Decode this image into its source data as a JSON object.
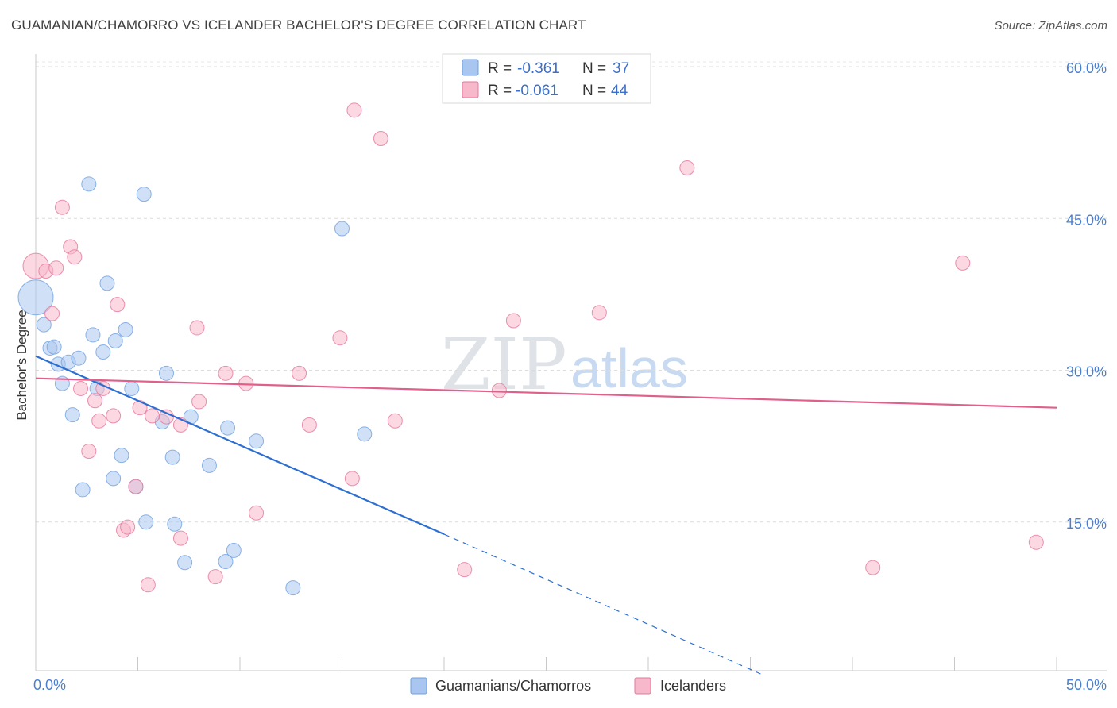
{
  "header": {
    "title": "GUAMANIAN/CHAMORRO VS ICELANDER BACHELOR'S DEGREE CORRELATION CHART",
    "source": "Source: ZipAtlas.com"
  },
  "watermark": {
    "part1": "ZIP",
    "part2": "atlas"
  },
  "legend": {
    "rows": [
      {
        "r_label": "R = ",
        "r_value": "-0.361",
        "n_label": "N = ",
        "n_value": "37",
        "color": "#a9c6f0"
      },
      {
        "r_label": "R = ",
        "r_value": "-0.061",
        "n_label": "N = ",
        "n_value": "44",
        "color": "#f7b8cb"
      }
    ]
  },
  "bottom_legend": [
    {
      "label": "Guamanians/Chamorros",
      "color": "#a9c6f0"
    },
    {
      "label": "Icelanders",
      "color": "#f7b8cb"
    }
  ],
  "chart_data": {
    "type": "scatter",
    "title": "GUAMANIAN/CHAMORRO VS ICELANDER BACHELOR'S DEGREE CORRELATION CHART",
    "xlabel": "",
    "ylabel": "Bachelor's Degree",
    "xlim": [
      0,
      50
    ],
    "ylim": [
      0,
      60
    ],
    "x_tick_labels": [
      "0.0%",
      "50.0%"
    ],
    "y_ticks": [
      15,
      30,
      45,
      60
    ],
    "y_tick_labels": [
      "15.0%",
      "30.0%",
      "45.0%",
      "60.0%"
    ],
    "grid": true,
    "series": [
      {
        "name": "Guamanians/Chamorros",
        "color": "#6fa0e0",
        "fill": "#a9c6f0",
        "trend": {
          "x0": 0,
          "y0": 31.4,
          "x1": 20,
          "y1": 13.8,
          "dash_to_x": 35.5,
          "dash_to_y": 0
        },
        "points": [
          [
            0,
            37.2,
            3
          ],
          [
            0.4,
            34.5,
            1
          ],
          [
            0.7,
            32.2,
            1
          ],
          [
            0.9,
            32.3,
            1
          ],
          [
            1.1,
            30.6,
            1
          ],
          [
            1.3,
            28.7,
            1
          ],
          [
            1.6,
            30.8,
            1
          ],
          [
            2.1,
            31.2,
            1
          ],
          [
            2.6,
            48.4,
            1
          ],
          [
            2.8,
            33.5,
            1
          ],
          [
            3.0,
            28.2,
            1
          ],
          [
            3.3,
            31.8,
            1
          ],
          [
            3.5,
            38.6,
            1
          ],
          [
            3.9,
            32.9,
            1
          ],
          [
            4.4,
            34.0,
            1
          ],
          [
            4.7,
            28.2,
            1
          ],
          [
            5.3,
            47.4,
            1
          ],
          [
            6.4,
            29.7,
            1
          ],
          [
            6.2,
            24.9,
            1
          ],
          [
            7.6,
            25.4,
            1
          ],
          [
            8.5,
            20.6,
            1
          ],
          [
            9.4,
            24.3,
            1
          ],
          [
            10.8,
            23.0,
            1
          ],
          [
            15.0,
            44.0,
            1
          ],
          [
            16.1,
            23.7,
            1
          ],
          [
            1.8,
            25.6,
            1
          ],
          [
            2.3,
            18.2,
            1
          ],
          [
            3.8,
            19.3,
            1
          ],
          [
            4.2,
            21.6,
            1
          ],
          [
            4.9,
            18.5,
            1
          ],
          [
            5.4,
            15.0,
            1
          ],
          [
            6.7,
            21.4,
            1
          ],
          [
            6.8,
            14.8,
            1
          ],
          [
            7.3,
            11.0,
            1
          ],
          [
            9.3,
            11.1,
            1
          ],
          [
            9.7,
            12.2,
            1
          ],
          [
            12.6,
            8.5,
            1
          ]
        ]
      },
      {
        "name": "Icelanders",
        "color": "#e5779b",
        "fill": "#f7b8cb",
        "trend": {
          "x0": 0,
          "y0": 29.2,
          "x1": 50,
          "y1": 26.3
        },
        "points": [
          [
            0,
            40.3,
            2
          ],
          [
            0.5,
            39.8,
            1
          ],
          [
            0.8,
            35.6,
            1
          ],
          [
            1.0,
            40.1,
            1
          ],
          [
            1.3,
            46.1,
            1
          ],
          [
            1.7,
            42.2,
            1
          ],
          [
            1.9,
            41.2,
            1
          ],
          [
            2.2,
            28.2,
            1
          ],
          [
            2.6,
            22.0,
            1
          ],
          [
            2.9,
            27.0,
            1
          ],
          [
            3.1,
            25.0,
            1
          ],
          [
            3.3,
            28.2,
            1
          ],
          [
            3.8,
            25.5,
            1
          ],
          [
            4.0,
            36.5,
            1
          ],
          [
            4.3,
            14.2,
            1
          ],
          [
            4.5,
            14.5,
            1
          ],
          [
            4.9,
            18.5,
            1
          ],
          [
            5.1,
            26.3,
            1
          ],
          [
            5.5,
            8.8,
            1
          ],
          [
            5.7,
            25.5,
            1
          ],
          [
            6.4,
            25.4,
            1
          ],
          [
            7.1,
            24.6,
            1
          ],
          [
            7.1,
            13.4,
            1
          ],
          [
            7.9,
            34.2,
            1
          ],
          [
            8.0,
            26.9,
            1
          ],
          [
            8.8,
            9.6,
            1
          ],
          [
            9.3,
            29.7,
            1
          ],
          [
            10.3,
            28.7,
            1
          ],
          [
            10.8,
            15.9,
            1
          ],
          [
            12.9,
            29.7,
            1
          ],
          [
            13.4,
            24.6,
            1
          ],
          [
            14.9,
            33.2,
            1
          ],
          [
            15.5,
            19.3,
            1
          ],
          [
            15.6,
            55.7,
            1
          ],
          [
            16.9,
            52.9,
            1
          ],
          [
            17.6,
            25.0,
            1
          ],
          [
            21.0,
            10.3,
            1
          ],
          [
            22.7,
            28.0,
            1
          ],
          [
            23.4,
            34.9,
            1
          ],
          [
            27.6,
            35.7,
            1
          ],
          [
            31.9,
            50.0,
            1
          ],
          [
            41.0,
            10.5,
            1
          ],
          [
            45.4,
            40.6,
            1
          ],
          [
            49.0,
            13.0,
            1
          ]
        ]
      }
    ]
  }
}
